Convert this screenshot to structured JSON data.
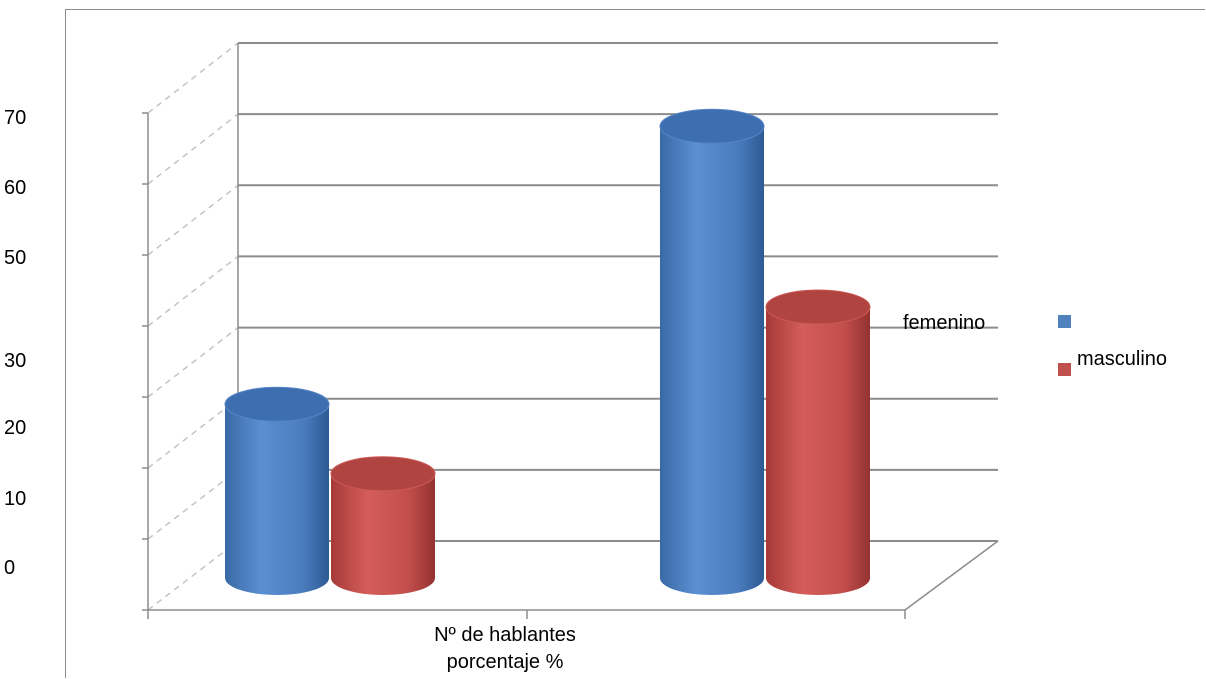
{
  "chart_data": {
    "type": "bar",
    "title": "",
    "xlabel": "",
    "ylabel": "",
    "categories": [
      "Nº de hablantes",
      "porcentaje %"
    ],
    "series": [
      {
        "name": "femenino",
        "values": [
          25,
          65
        ]
      },
      {
        "name": "masculino",
        "values": [
          15,
          39
        ]
      }
    ],
    "y_tick_labels": [
      "70",
      "60",
      "50",
      "30",
      "20",
      "10",
      "0"
    ],
    "ylim": [
      0,
      70
    ],
    "grid": true,
    "legend_position": "right",
    "colors": {
      "femenino": "#4f81bd",
      "masculino": "#c0504d"
    }
  }
}
